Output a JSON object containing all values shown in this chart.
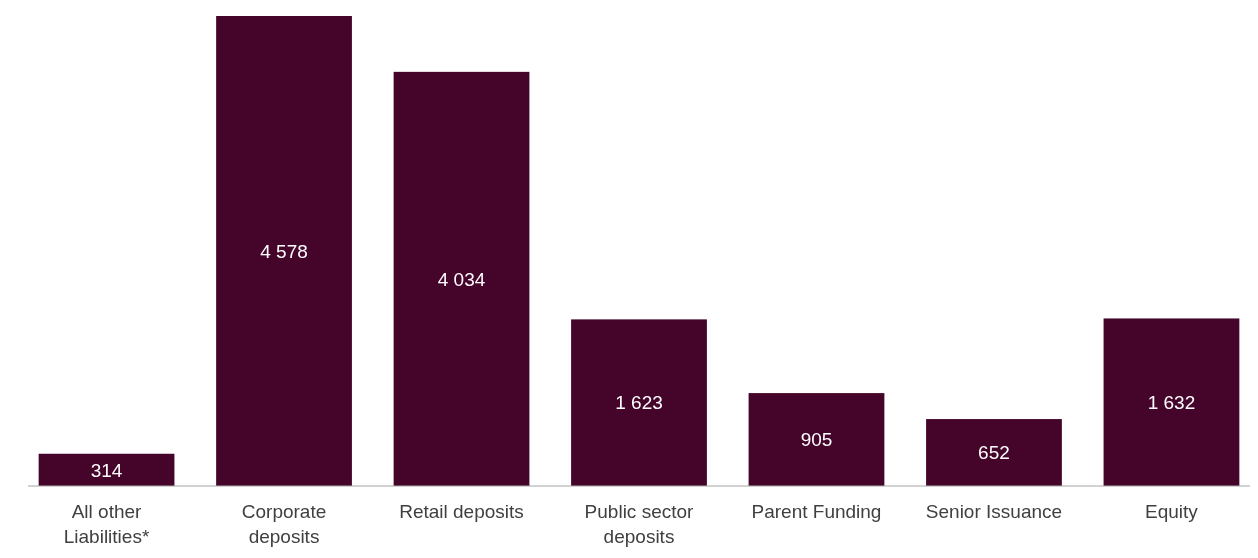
{
  "chart_data": {
    "type": "bar",
    "categories": [
      "All other Liabilities*",
      "Corporate deposits",
      "Retail deposits",
      "Public sector deposits",
      "Parent Funding",
      "Senior Issuance",
      "Equity"
    ],
    "values": [
      314,
      4578,
      4034,
      1623,
      905,
      652,
      1632
    ],
    "value_labels": [
      "314",
      "4 578",
      "4 034",
      "1 623",
      "905",
      "652",
      "1 632"
    ],
    "color": "#45042a"
  }
}
